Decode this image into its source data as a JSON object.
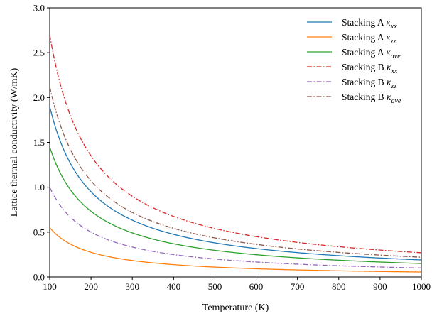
{
  "chart_data": {
    "type": "line",
    "xlabel": "Temperature (K)",
    "ylabel": "Lattice thermal conductivity (W/mK)",
    "xlim": [
      100,
      1000
    ],
    "ylim": [
      0,
      3.0
    ],
    "x_ticks": [
      100,
      200,
      300,
      400,
      500,
      600,
      700,
      800,
      900,
      1000
    ],
    "y_ticks": [
      "0.0",
      "0.5",
      "1.0",
      "1.5",
      "2.0",
      "2.5",
      "3.0"
    ],
    "grid": false,
    "legend_position": "top-right",
    "x": [
      100,
      200,
      300,
      400,
      500,
      600,
      700,
      800,
      900,
      1000
    ],
    "series": [
      {
        "name": "Stacking A κxx",
        "name_prefix": "Stacking A ",
        "symbol": "κ",
        "subscript": "xx",
        "color": "#1f77b4",
        "dash": "solid",
        "values": [
          1.9,
          0.96,
          0.64,
          0.48,
          0.39,
          0.32,
          0.28,
          0.24,
          0.21,
          0.19
        ]
      },
      {
        "name": "Stacking A κzz",
        "name_prefix": "Stacking A ",
        "symbol": "κ",
        "subscript": "zz",
        "color": "#ff7f0e",
        "dash": "solid",
        "values": [
          0.55,
          0.28,
          0.18,
          0.14,
          0.11,
          0.092,
          0.079,
          0.069,
          0.061,
          0.055
        ]
      },
      {
        "name": "Stacking A κave",
        "name_prefix": "Stacking A ",
        "symbol": "κ",
        "subscript": "ave",
        "color": "#2ca02c",
        "dash": "solid",
        "values": [
          1.45,
          0.73,
          0.49,
          0.37,
          0.3,
          0.25,
          0.21,
          0.19,
          0.17,
          0.15
        ]
      },
      {
        "name": "Stacking B κxx",
        "name_prefix": "Stacking B ",
        "symbol": "κ",
        "subscript": "xx",
        "color": "#d62728",
        "dash": "dashdot",
        "values": [
          2.7,
          1.36,
          0.91,
          0.68,
          0.55,
          0.46,
          0.39,
          0.34,
          0.3,
          0.27
        ]
      },
      {
        "name": "Stacking B κzz",
        "name_prefix": "Stacking B ",
        "symbol": "κ",
        "subscript": "zz",
        "color": "#9467bd",
        "dash": "dashdot",
        "values": [
          1.0,
          0.5,
          0.34,
          0.25,
          0.2,
          0.17,
          0.14,
          0.13,
          0.11,
          0.1
        ]
      },
      {
        "name": "Stacking B κave",
        "name_prefix": "Stacking B ",
        "symbol": "κ",
        "subscript": "ave",
        "color": "#8c564b",
        "dash": "dashdot",
        "values": [
          2.12,
          1.07,
          0.71,
          0.54,
          0.43,
          0.36,
          0.31,
          0.27,
          0.24,
          0.22
        ]
      }
    ]
  }
}
